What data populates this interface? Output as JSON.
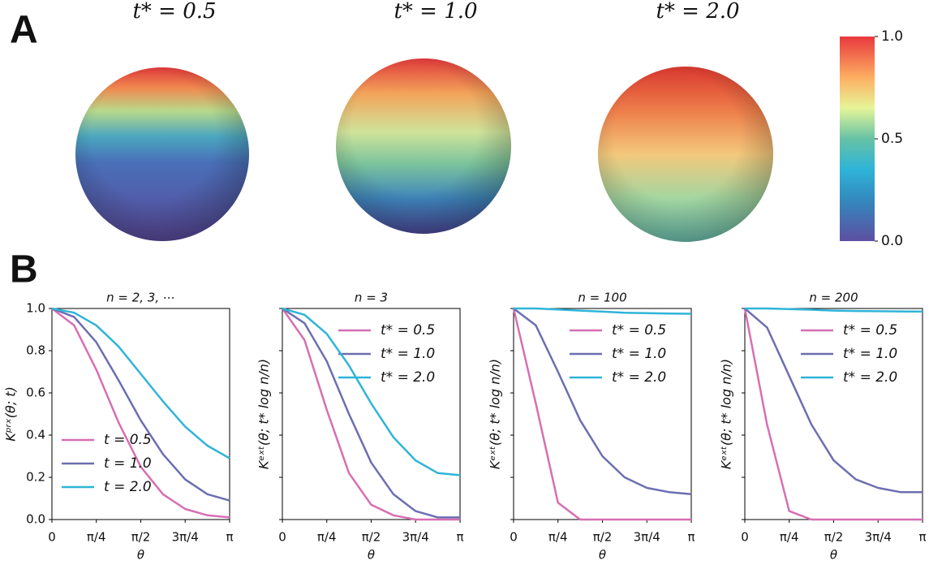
{
  "panel_labels": [
    "A",
    "B"
  ],
  "chart_data": [
    {
      "type": "sphere",
      "title": "t* = 0.5"
    },
    {
      "type": "sphere",
      "title": "t* = 1.0"
    },
    {
      "type": "sphere",
      "title": "t* = 2.0"
    },
    {
      "type": "colorbar",
      "ylim": [
        0,
        1
      ],
      "yticks": [
        {
          "value": 0,
          "label": "0.0"
        },
        {
          "value": 0.5,
          "label": "0.5"
        },
        {
          "value": 1,
          "label": "1.0"
        }
      ]
    },
    {
      "type": "line",
      "title": "n = 2, 3, ⋯",
      "y_label": "Kᵖʳˣ(θ; t)",
      "x_label": "θ",
      "legend": "lower left",
      "show_ytick_labels": true,
      "x": [
        0,
        0.393,
        0.785,
        1.178,
        1.571,
        1.963,
        2.356,
        2.749,
        3.142
      ],
      "xlim": [
        0,
        3.1416
      ],
      "xticks": [
        {
          "value": 0,
          "label": "0"
        },
        {
          "value": 0.785,
          "label": "π/4"
        },
        {
          "value": 1.571,
          "label": "π/2"
        },
        {
          "value": 2.356,
          "label": "3π/4"
        },
        {
          "value": 3.142,
          "label": "π"
        }
      ],
      "ylim": [
        0,
        1
      ],
      "yticks": [
        {
          "value": 0,
          "label": "0.0"
        },
        {
          "value": 0.2,
          "label": "0.2"
        },
        {
          "value": 0.4,
          "label": "0.4"
        },
        {
          "value": 0.6,
          "label": "0.6"
        },
        {
          "value": 0.8,
          "label": "0.8"
        },
        {
          "value": 1,
          "label": "1.0"
        }
      ],
      "series": [
        {
          "name": "t = 0.5",
          "color": "#d66fb2",
          "values": [
            1,
            0.92,
            0.71,
            0.46,
            0.25,
            0.12,
            0.05,
            0.02,
            0.01
          ]
        },
        {
          "name": "t = 1.0",
          "color": "#6c6fb0",
          "values": [
            1,
            0.96,
            0.84,
            0.66,
            0.47,
            0.31,
            0.19,
            0.12,
            0.09
          ]
        },
        {
          "name": "t = 2.0",
          "color": "#2fb4d8",
          "values": [
            1,
            0.98,
            0.92,
            0.82,
            0.69,
            0.56,
            0.44,
            0.35,
            0.29
          ]
        }
      ]
    },
    {
      "type": "line",
      "title": "n = 3",
      "y_label": "Kᵉˣᵗ(θ; t* log n/n)",
      "x_label": "θ",
      "legend": "upper right",
      "show_ytick_labels": false,
      "x": [
        0,
        0.393,
        0.785,
        1.178,
        1.571,
        1.963,
        2.356,
        2.749,
        3.142
      ],
      "xlim": [
        0,
        3.1416
      ],
      "xticks": [
        {
          "value": 0,
          "label": "0"
        },
        {
          "value": 0.785,
          "label": "π/4"
        },
        {
          "value": 1.571,
          "label": "π/2"
        },
        {
          "value": 2.356,
          "label": "3π/4"
        },
        {
          "value": 3.142,
          "label": "π"
        }
      ],
      "ylim": [
        0,
        1
      ],
      "yticks": [
        0,
        0.2,
        0.4,
        0.6,
        0.8,
        1
      ],
      "series": [
        {
          "name": "t* = 0.5",
          "color": "#d66fb2",
          "values": [
            1,
            0.85,
            0.52,
            0.22,
            0.07,
            0.02,
            0,
            0,
            0
          ]
        },
        {
          "name": "t* = 1.0",
          "color": "#6c6fb0",
          "values": [
            1,
            0.93,
            0.75,
            0.5,
            0.27,
            0.12,
            0.04,
            0.01,
            0.01
          ]
        },
        {
          "name": "t* = 2.0",
          "color": "#2fb4d8",
          "values": [
            1,
            0.97,
            0.88,
            0.73,
            0.55,
            0.39,
            0.28,
            0.22,
            0.21
          ]
        }
      ]
    },
    {
      "type": "line",
      "title": "n = 100",
      "y_label": "Kᵉˣᵗ(θ; t* log n/n)",
      "x_label": "θ",
      "legend": "upper right",
      "show_ytick_labels": false,
      "x": [
        0,
        0.393,
        0.785,
        1.178,
        1.571,
        1.963,
        2.356,
        2.749,
        3.142
      ],
      "xlim": [
        0,
        3.1416
      ],
      "xticks": [
        {
          "value": 0,
          "label": "0"
        },
        {
          "value": 0.785,
          "label": "π/4"
        },
        {
          "value": 1.571,
          "label": "π/2"
        },
        {
          "value": 2.356,
          "label": "3π/4"
        },
        {
          "value": 3.142,
          "label": "π"
        }
      ],
      "ylim": [
        0,
        1
      ],
      "yticks": [
        0,
        0.2,
        0.4,
        0.6,
        0.8,
        1
      ],
      "series": [
        {
          "name": "t* = 0.5",
          "color": "#d66fb2",
          "values": [
            1,
            0.55,
            0.08,
            0,
            0,
            0,
            0,
            0,
            0
          ]
        },
        {
          "name": "t* = 1.0",
          "color": "#6c6fb0",
          "values": [
            1,
            0.92,
            0.7,
            0.47,
            0.3,
            0.2,
            0.15,
            0.13,
            0.12
          ]
        },
        {
          "name": "t* = 2.0",
          "color": "#2fb4d8",
          "values": [
            1,
            1,
            0.995,
            0.99,
            0.985,
            0.98,
            0.978,
            0.976,
            0.975
          ]
        }
      ]
    },
    {
      "type": "line",
      "title": "n = 200",
      "y_label": "Kᵉˣᵗ(θ; t* log n/n)",
      "x_label": "θ",
      "legend": "upper right",
      "show_ytick_labels": false,
      "x": [
        0,
        0.393,
        0.785,
        1.178,
        1.571,
        1.963,
        2.356,
        2.749,
        3.142
      ],
      "xlim": [
        0,
        3.1416
      ],
      "xticks": [
        {
          "value": 0,
          "label": "0"
        },
        {
          "value": 0.785,
          "label": "π/4"
        },
        {
          "value": 1.571,
          "label": "π/2"
        },
        {
          "value": 2.356,
          "label": "3π/4"
        },
        {
          "value": 3.142,
          "label": "π"
        }
      ],
      "ylim": [
        0,
        1
      ],
      "yticks": [
        0,
        0.2,
        0.4,
        0.6,
        0.8,
        1
      ],
      "series": [
        {
          "name": "t* = 0.5",
          "color": "#d66fb2",
          "values": [
            1,
            0.45,
            0.04,
            0,
            0,
            0,
            0,
            0,
            0
          ]
        },
        {
          "name": "t* = 1.0",
          "color": "#6c6fb0",
          "values": [
            1,
            0.91,
            0.68,
            0.45,
            0.28,
            0.19,
            0.15,
            0.13,
            0.13
          ]
        },
        {
          "name": "t* = 2.0",
          "color": "#2fb4d8",
          "values": [
            1,
            1,
            0.997,
            0.994,
            0.99,
            0.988,
            0.987,
            0.986,
            0.985
          ]
        }
      ]
    }
  ]
}
